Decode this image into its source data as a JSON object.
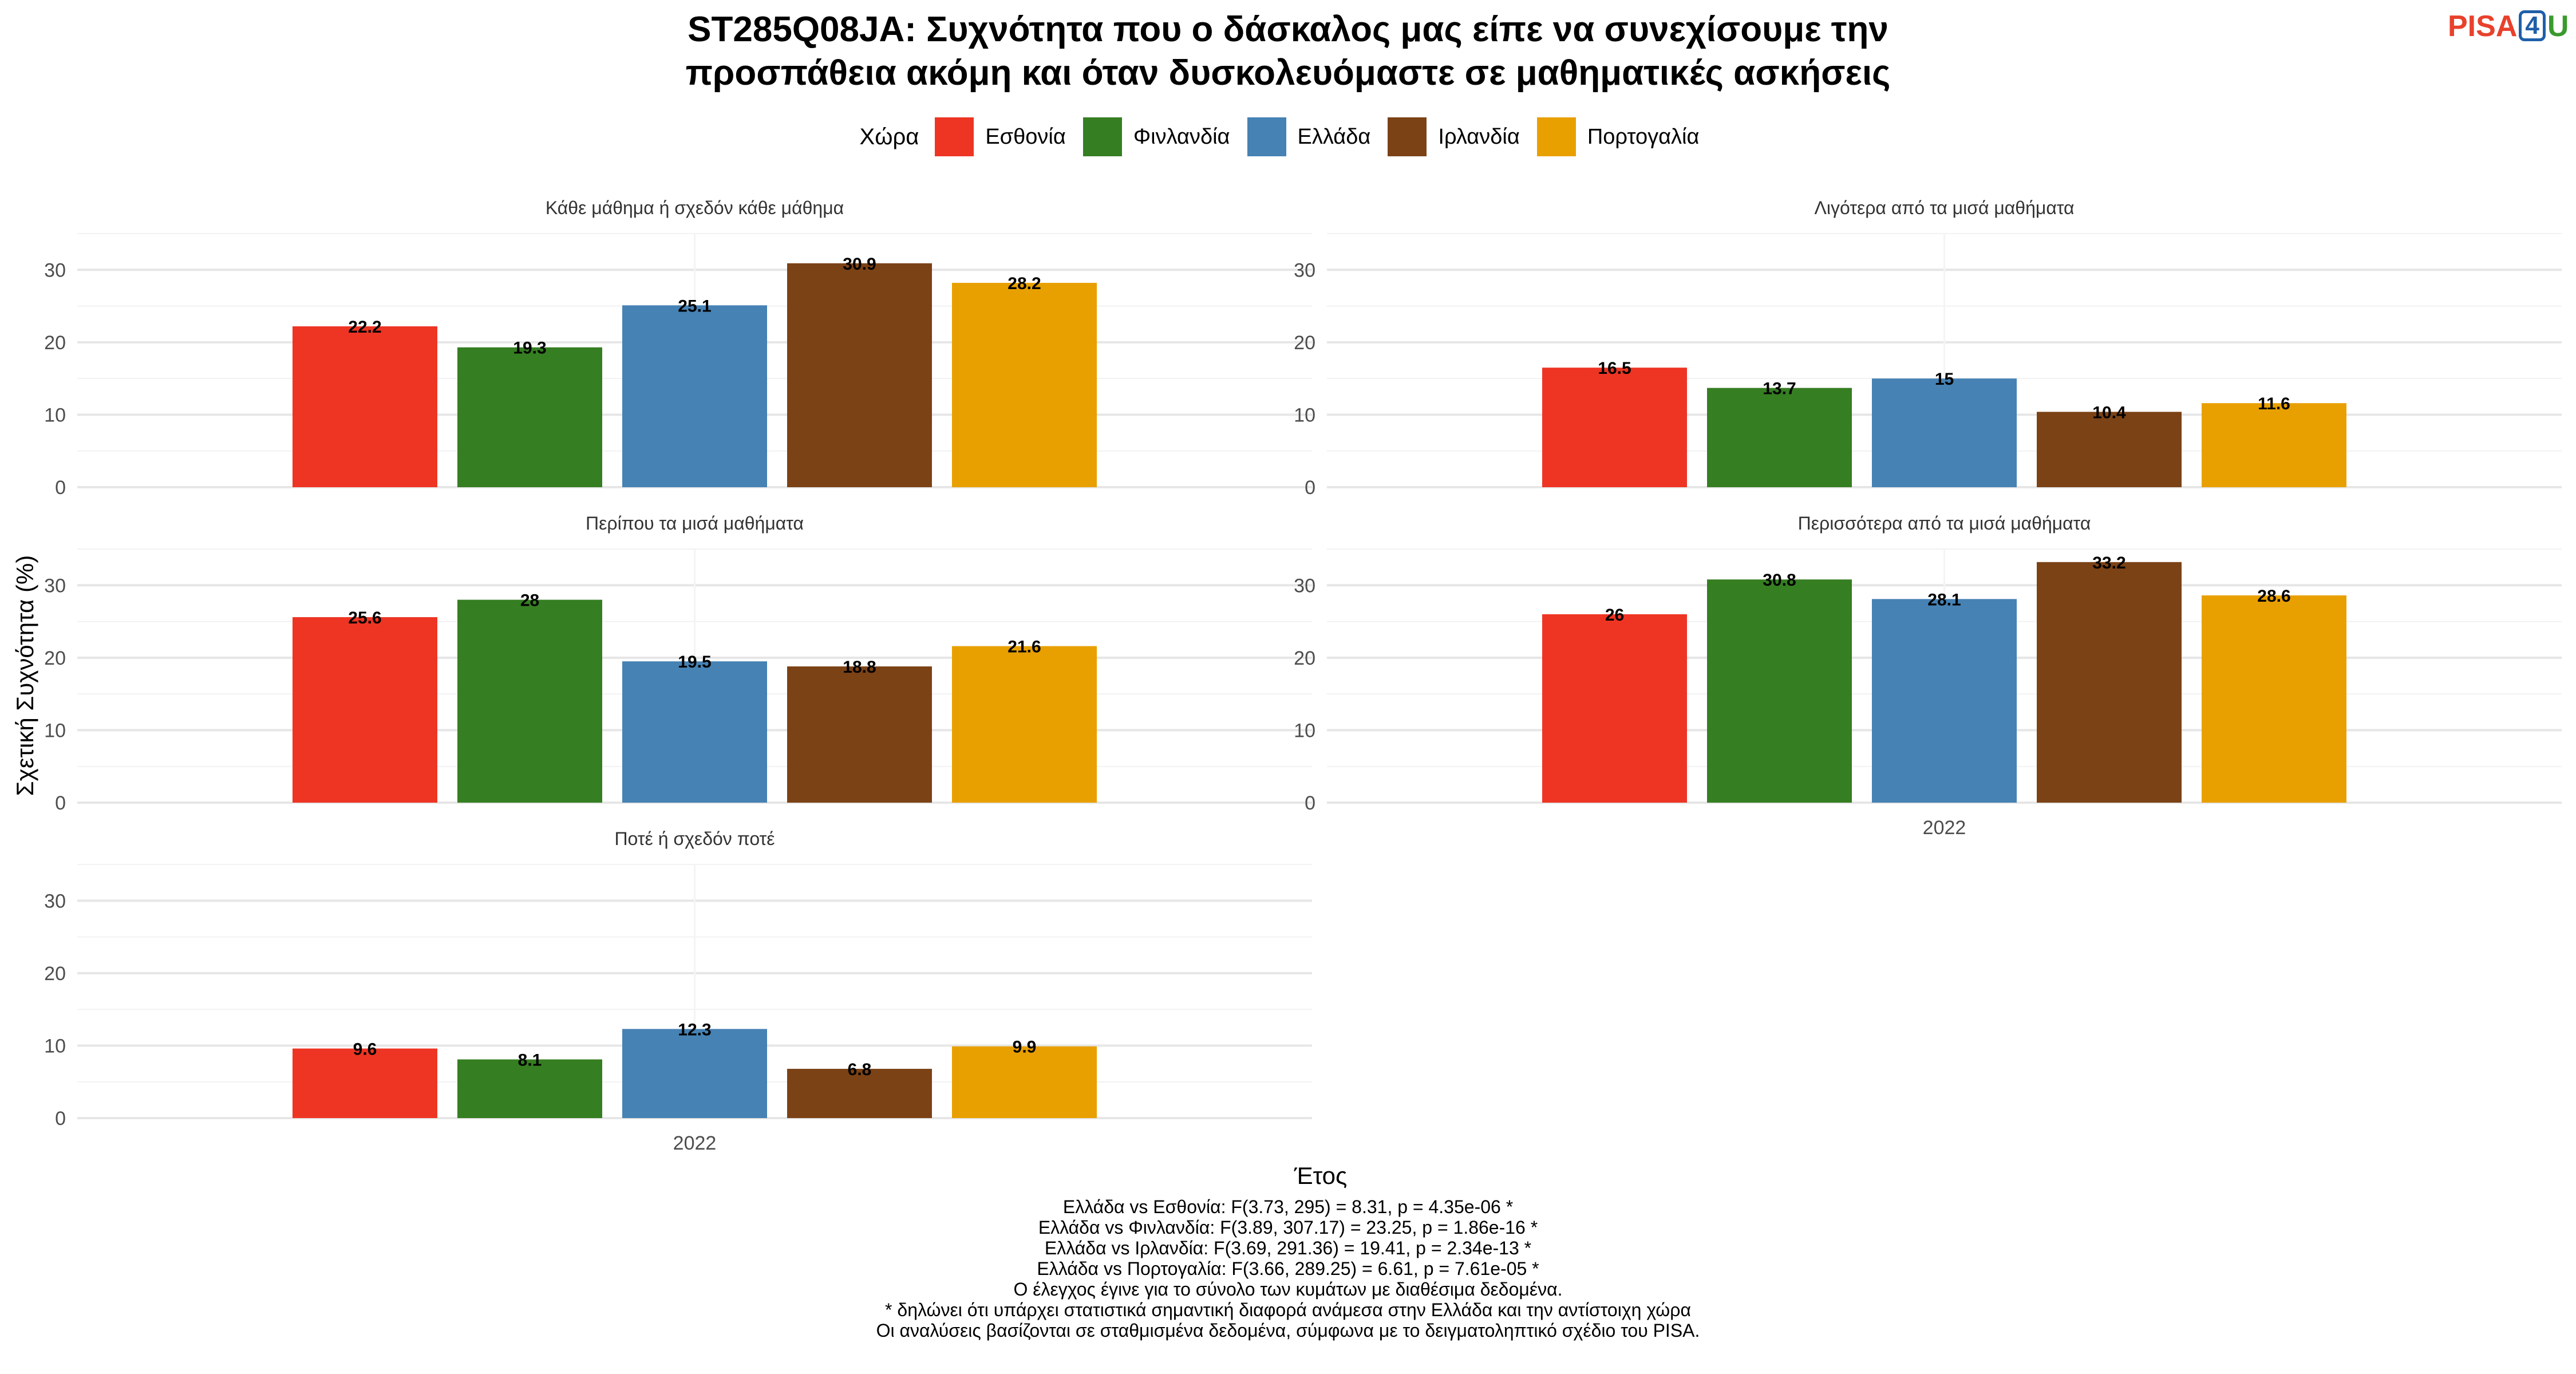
{
  "title_lines": [
    "ST285Q08JA: Συχνότητα που ο δάσκαλος μας είπε να συνεχίσουμε την",
    "προσπάθεια ακόμη και όταν δυσκολευόμαστε σε μαθηματικές ασκήσεις"
  ],
  "logo": {
    "part1": "PISA",
    "part2": "4",
    "part3": "U"
  },
  "legend": {
    "title": "Χώρα"
  },
  "colors": {
    "Εσθονία": "#ee3524",
    "Φινλανδία": "#367e22",
    "Ελλάδα": "#4682b4",
    "Ιρλανδία": "#7b4216",
    "Πορτογαλία": "#e8a000"
  },
  "chart_data": {
    "type": "bar",
    "xlabel": "Έτος",
    "ylabel": "Σχετική Συχνότητα (%)",
    "ylim": [
      0,
      35
    ],
    "yticks": [
      0,
      10,
      20,
      30
    ],
    "grid": true,
    "legend_position": "top",
    "categories": [
      "2022"
    ],
    "series_names": [
      "Εσθονία",
      "Φινλανδία",
      "Ελλάδα",
      "Ιρλανδία",
      "Πορτογαλία"
    ],
    "facets": [
      {
        "title": "Κάθε μάθημα ή σχεδόν κάθε μάθημα",
        "values": [
          22.2,
          19.3,
          25.1,
          30.9,
          28.2
        ]
      },
      {
        "title": "Λιγότερα από τα μισά μαθήματα",
        "values": [
          16.5,
          13.7,
          15,
          10.4,
          11.6
        ]
      },
      {
        "title": "Περίπου τα μισά μαθήματα",
        "values": [
          25.6,
          28,
          19.5,
          18.8,
          21.6
        ]
      },
      {
        "title": "Περισσότερα από τα μισά μαθήματα",
        "values": [
          26,
          30.8,
          28.1,
          33.2,
          28.6
        ]
      },
      {
        "title": "Ποτέ ή σχεδόν ποτέ",
        "values": [
          9.6,
          8.1,
          12.3,
          6.8,
          9.9
        ]
      }
    ]
  },
  "notes": [
    "Ελλάδα vs Εσθονία: F(3.73, 295) = 8.31, p = 4.35e-06 *",
    "Ελλάδα vs Φινλανδία: F(3.89, 307.17) = 23.25, p = 1.86e-16 *",
    "Ελλάδα vs Ιρλανδία: F(3.69, 291.36) = 19.41, p = 2.34e-13 *",
    "Ελλάδα vs Πορτογαλία: F(3.66, 289.25) = 6.61, p = 7.61e-05 *",
    "Ο έλεγχος έγινε για το σύνολο των κυμάτων με διαθέσιμα δεδομένα.",
    "* δηλώνει ότι υπάρχει στατιστικά σημαντική διαφορά ανάμεσα στην Ελλάδα και την αντίστοιχη χώρα",
    "Οι αναλύσεις βασίζονται σε σταθμισμένα δεδομένα, σύμφωνα με το δειγματοληπτικό σχέδιο του PISA."
  ]
}
